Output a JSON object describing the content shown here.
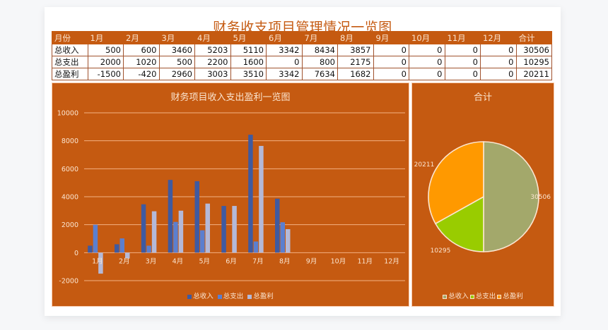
{
  "page": {
    "title": "财务收支项目管理情况一览图"
  },
  "table": {
    "headers": [
      "月份",
      "1月",
      "2月",
      "3月",
      "4月",
      "5月",
      "6月",
      "7月",
      "8月",
      "9月",
      "10月",
      "11月",
      "12月",
      "合计"
    ],
    "rows": [
      {
        "label": "总收入",
        "values": [
          500,
          600,
          3460,
          5203,
          5110,
          3342,
          8434,
          3857,
          0,
          0,
          0,
          0,
          30506
        ]
      },
      {
        "label": "总支出",
        "values": [
          2000,
          1020,
          500,
          2200,
          1600,
          0,
          800,
          2175,
          0,
          0,
          0,
          0,
          10295
        ]
      },
      {
        "label": "总盈利",
        "values": [
          -1500,
          -420,
          2960,
          3003,
          3510,
          3342,
          7634,
          1682,
          0,
          0,
          0,
          0,
          20211
        ]
      }
    ],
    "header_bg": "#c55a11",
    "header_fg": "#fbe5d0"
  },
  "colors": {
    "panel_bg": "#c55a11",
    "income_bar": "#3f5aa0",
    "expense_bar": "#5b7fcf",
    "profit_bar": "#b4b9d8",
    "pie_income": "#a3a86b",
    "pie_expense": "#99cc00",
    "pie_profit": "#ff9900"
  },
  "chart_data": [
    {
      "type": "bar",
      "title": "财务项目收入支出盈利一览图",
      "categories": [
        "1月",
        "2月",
        "3月",
        "4月",
        "5月",
        "6月",
        "7月",
        "8月",
        "9月",
        "10月",
        "11月",
        "12月"
      ],
      "series": [
        {
          "name": "总收入",
          "values": [
            500,
            600,
            3460,
            5203,
            5110,
            3342,
            8434,
            3857,
            0,
            0,
            0,
            0
          ]
        },
        {
          "name": "总支出",
          "values": [
            2000,
            1020,
            500,
            2200,
            1600,
            0,
            800,
            2175,
            0,
            0,
            0,
            0
          ]
        },
        {
          "name": "总盈利",
          "values": [
            -1500,
            -420,
            2960,
            3003,
            3510,
            3342,
            7634,
            1682,
            0,
            0,
            0,
            0
          ]
        }
      ],
      "yticks": [
        -2000,
        0,
        2000,
        4000,
        6000,
        8000,
        10000
      ],
      "ylim": [
        -2000,
        10000
      ],
      "xlabel": "",
      "ylabel": "",
      "grid": true,
      "legend_position": "bottom"
    },
    {
      "type": "pie",
      "title": "合计",
      "labels": [
        "总收入",
        "总支出",
        "总盈利"
      ],
      "values": [
        30506,
        10295,
        20211
      ],
      "legend_position": "bottom"
    }
  ]
}
